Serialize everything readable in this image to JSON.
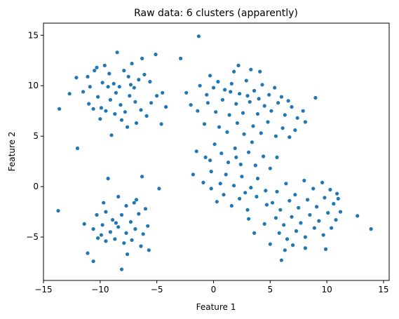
{
  "chart_data": {
    "type": "scatter",
    "title": "Raw data: 6 clusters (apparently)",
    "xlabel": "Feature 1",
    "ylabel": "Feature 2",
    "xlim": [
      -15,
      15.5
    ],
    "ylim": [
      -9.3,
      16.2
    ],
    "xticks": [
      -15,
      -10,
      -5,
      0,
      5,
      10,
      15
    ],
    "yticks": [
      -5,
      0,
      5,
      10,
      15
    ],
    "grid": false,
    "marker_color": "#1f77b4",
    "series": [
      {
        "values": [
          {
            "x": -10.3,
            "y": 11.8
          },
          {
            "x": -9.6,
            "y": 12.0
          },
          {
            "x": -8.5,
            "y": 13.3
          },
          {
            "x": -7.2,
            "y": 12.2
          },
          {
            "x": -6.3,
            "y": 12.7
          },
          {
            "x": -5.1,
            "y": 13.1
          },
          {
            "x": -12.1,
            "y": 10.8
          },
          {
            "x": -11.1,
            "y": 10.9
          },
          {
            "x": -10.5,
            "y": 11.5
          },
          {
            "x": -9.8,
            "y": 10.3
          },
          {
            "x": -9.2,
            "y": 11.2
          },
          {
            "x": -8.8,
            "y": 10.2
          },
          {
            "x": -8.3,
            "y": 9.9
          },
          {
            "x": -7.9,
            "y": 11.5
          },
          {
            "x": -7.5,
            "y": 10.9
          },
          {
            "x": -7.0,
            "y": 9.8
          },
          {
            "x": -6.6,
            "y": 10.6
          },
          {
            "x": -6.1,
            "y": 11.1
          },
          {
            "x": -5.6,
            "y": 10.4
          },
          {
            "x": -5.0,
            "y": 9.0
          },
          {
            "x": -4.5,
            "y": 9.3
          },
          {
            "x": -4.2,
            "y": 7.9
          },
          {
            "x": -12.7,
            "y": 9.2
          },
          {
            "x": -11.5,
            "y": 9.4
          },
          {
            "x": -11.0,
            "y": 8.2
          },
          {
            "x": -10.6,
            "y": 7.7
          },
          {
            "x": -10.2,
            "y": 8.9
          },
          {
            "x": -9.9,
            "y": 7.8
          },
          {
            "x": -9.5,
            "y": 7.5
          },
          {
            "x": -9.1,
            "y": 8.6
          },
          {
            "x": -8.7,
            "y": 7.2
          },
          {
            "x": -8.2,
            "y": 8.1
          },
          {
            "x": -7.8,
            "y": 7.4
          },
          {
            "x": -7.4,
            "y": 9.0
          },
          {
            "x": -6.9,
            "y": 8.4
          },
          {
            "x": -6.4,
            "y": 7.6
          },
          {
            "x": -5.9,
            "y": 7.0
          },
          {
            "x": -5.5,
            "y": 8.3
          },
          {
            "x": -4.6,
            "y": 6.2
          },
          {
            "x": -13.6,
            "y": 7.7
          },
          {
            "x": -10.0,
            "y": 6.7
          },
          {
            "x": -9.0,
            "y": 5.1
          },
          {
            "x": -8.1,
            "y": 6.6
          },
          {
            "x": -7.6,
            "y": 5.9
          },
          {
            "x": -6.8,
            "y": 6.3
          },
          {
            "x": -12.0,
            "y": 3.8
          },
          {
            "x": -9.3,
            "y": 9.9
          },
          {
            "x": -8.6,
            "y": 9.3
          },
          {
            "x": -10.9,
            "y": 9.9
          },
          {
            "x": -7.3,
            "y": 10.1
          },
          {
            "x": -2.9,
            "y": 12.7
          },
          {
            "x": -1.3,
            "y": 14.9
          },
          {
            "x": -0.3,
            "y": 11.0
          },
          {
            "x": 1.8,
            "y": 11.4
          },
          {
            "x": 2.2,
            "y": 12.0
          },
          {
            "x": 3.3,
            "y": 11.6
          },
          {
            "x": 4.1,
            "y": 11.4
          },
          {
            "x": -2.4,
            "y": 9.3
          },
          {
            "x": -1.2,
            "y": 10.0
          },
          {
            "x": -0.6,
            "y": 9.1
          },
          {
            "x": 0.4,
            "y": 10.4
          },
          {
            "x": 1.0,
            "y": 9.6
          },
          {
            "x": 1.6,
            "y": 10.2
          },
          {
            "x": 2.3,
            "y": 9.2
          },
          {
            "x": 2.9,
            "y": 10.5
          },
          {
            "x": 3.6,
            "y": 9.5
          },
          {
            "x": 4.3,
            "y": 10.1
          },
          {
            "x": 4.9,
            "y": 9.1
          },
          {
            "x": 5.4,
            "y": 9.8
          },
          {
            "x": 6.0,
            "y": 8.9
          },
          {
            "x": 6.6,
            "y": 8.5
          },
          {
            "x": -2.0,
            "y": 8.1
          },
          {
            "x": -1.4,
            "y": 7.5
          },
          {
            "x": -0.5,
            "y": 8.3
          },
          {
            "x": 0.2,
            "y": 7.4
          },
          {
            "x": 0.8,
            "y": 8.6
          },
          {
            "x": 1.4,
            "y": 7.1
          },
          {
            "x": 2.0,
            "y": 8.2
          },
          {
            "x": 2.6,
            "y": 7.3
          },
          {
            "x": 3.2,
            "y": 8.4
          },
          {
            "x": 3.9,
            "y": 7.2
          },
          {
            "x": 4.5,
            "y": 8.0
          },
          {
            "x": 5.1,
            "y": 7.5
          },
          {
            "x": 5.7,
            "y": 8.3
          },
          {
            "x": 6.3,
            "y": 7.1
          },
          {
            "x": 6.9,
            "y": 7.9
          },
          {
            "x": 7.4,
            "y": 6.8
          },
          {
            "x": 7.9,
            "y": 7.5
          },
          {
            "x": 8.1,
            "y": 6.4
          },
          {
            "x": 9.0,
            "y": 8.8
          },
          {
            "x": -0.8,
            "y": 6.2
          },
          {
            "x": 0.5,
            "y": 5.9
          },
          {
            "x": 1.2,
            "y": 5.4
          },
          {
            "x": 2.1,
            "y": 6.3
          },
          {
            "x": 2.7,
            "y": 5.2
          },
          {
            "x": 3.5,
            "y": 6.0
          },
          {
            "x": 4.2,
            "y": 5.3
          },
          {
            "x": 4.8,
            "y": 6.4
          },
          {
            "x": 5.5,
            "y": 5.0
          },
          {
            "x": 6.1,
            "y": 5.8
          },
          {
            "x": 6.7,
            "y": 4.9
          },
          {
            "x": 7.2,
            "y": 5.6
          },
          {
            "x": 1.5,
            "y": 9.4
          },
          {
            "x": 3.0,
            "y": 9.0
          },
          {
            "x": 4.0,
            "y": 8.7
          },
          {
            "x": 0.0,
            "y": 9.8
          },
          {
            "x": -1.5,
            "y": 3.5
          },
          {
            "x": -0.7,
            "y": 2.9
          },
          {
            "x": 0.1,
            "y": 4.2
          },
          {
            "x": 0.7,
            "y": 3.3
          },
          {
            "x": 1.3,
            "y": 2.4
          },
          {
            "x": 1.9,
            "y": 3.8
          },
          {
            "x": 2.4,
            "y": 2.2
          },
          {
            "x": 3.1,
            "y": 3.4
          },
          {
            "x": 3.7,
            "y": 2.1
          },
          {
            "x": 4.4,
            "y": 3.0
          },
          {
            "x": 5.0,
            "y": 1.8
          },
          {
            "x": 5.6,
            "y": 2.9
          },
          {
            "x": -1.8,
            "y": 1.2
          },
          {
            "x": -0.9,
            "y": 0.4
          },
          {
            "x": -0.2,
            "y": 1.5
          },
          {
            "x": 0.6,
            "y": 0.3
          },
          {
            "x": 1.1,
            "y": 1.2
          },
          {
            "x": 1.8,
            "y": 0.1
          },
          {
            "x": 2.5,
            "y": 1.0
          },
          {
            "x": 3.3,
            "y": -0.1
          },
          {
            "x": 3.9,
            "y": 0.8
          },
          {
            "x": 4.6,
            "y": -0.4
          },
          {
            "x": 0.9,
            "y": -0.8
          },
          {
            "x": 1.6,
            "y": -1.9
          },
          {
            "x": 2.3,
            "y": -1.2
          },
          {
            "x": 3.0,
            "y": -2.3
          },
          {
            "x": 3.8,
            "y": -1.0
          },
          {
            "x": 4.7,
            "y": -1.8
          },
          {
            "x": -0.2,
            "y": -0.2
          },
          {
            "x": 0.3,
            "y": -1.5
          },
          {
            "x": 2.8,
            "y": -0.6
          },
          {
            "x": 2.0,
            "y": 2.9
          },
          {
            "x": -0.3,
            "y": 2.6
          },
          {
            "x": 3.4,
            "y": 4.4
          },
          {
            "x": 5.6,
            "y": -0.5
          },
          {
            "x": 6.4,
            "y": 0.3
          },
          {
            "x": 7.2,
            "y": -0.8
          },
          {
            "x": 8.0,
            "y": 0.6
          },
          {
            "x": 8.8,
            "y": -0.2
          },
          {
            "x": 9.6,
            "y": 0.4
          },
          {
            "x": 10.3,
            "y": -0.3
          },
          {
            "x": 10.9,
            "y": -0.7
          },
          {
            "x": 5.2,
            "y": -1.6
          },
          {
            "x": 5.9,
            "y": -2.3
          },
          {
            "x": 6.7,
            "y": -1.4
          },
          {
            "x": 7.5,
            "y": -2.1
          },
          {
            "x": 8.3,
            "y": -1.3
          },
          {
            "x": 9.1,
            "y": -2.0
          },
          {
            "x": 9.8,
            "y": -1.1
          },
          {
            "x": 10.6,
            "y": -1.7
          },
          {
            "x": 11.2,
            "y": -2.5
          },
          {
            "x": 12.7,
            "y": -2.9
          },
          {
            "x": 13.9,
            "y": -4.2
          },
          {
            "x": 5.5,
            "y": -3.1
          },
          {
            "x": 6.2,
            "y": -3.8
          },
          {
            "x": 6.9,
            "y": -3.0
          },
          {
            "x": 7.7,
            "y": -3.6
          },
          {
            "x": 8.5,
            "y": -2.8
          },
          {
            "x": 9.3,
            "y": -3.4
          },
          {
            "x": 10.1,
            "y": -2.6
          },
          {
            "x": 10.8,
            "y": -3.3
          },
          {
            "x": 4.5,
            "y": -3.7
          },
          {
            "x": 5.8,
            "y": -4.6
          },
          {
            "x": 6.5,
            "y": -5.2
          },
          {
            "x": 7.3,
            "y": -4.4
          },
          {
            "x": 8.1,
            "y": -5.0
          },
          {
            "x": 8.9,
            "y": -4.1
          },
          {
            "x": 9.7,
            "y": -4.8
          },
          {
            "x": 3.6,
            "y": -4.6
          },
          {
            "x": 3.1,
            "y": -3.2
          },
          {
            "x": 5.0,
            "y": -5.7
          },
          {
            "x": 6.3,
            "y": -6.3
          },
          {
            "x": 6.0,
            "y": -7.3
          },
          {
            "x": 8.1,
            "y": -6.1
          },
          {
            "x": 9.9,
            "y": -6.2
          },
          {
            "x": 7.0,
            "y": -5.8
          },
          {
            "x": 11.0,
            "y": -1.2
          },
          {
            "x": 10.4,
            "y": -4.1
          },
          {
            "x": -9.3,
            "y": 0.8
          },
          {
            "x": -6.3,
            "y": 1.0
          },
          {
            "x": -4.8,
            "y": -0.2
          },
          {
            "x": -9.7,
            "y": -1.6
          },
          {
            "x": -8.4,
            "y": -1.0
          },
          {
            "x": -7.7,
            "y": -1.9
          },
          {
            "x": -6.8,
            "y": -1.3
          },
          {
            "x": -6.0,
            "y": -2.2
          },
          {
            "x": -10.3,
            "y": -2.8
          },
          {
            "x": -9.5,
            "y": -2.5
          },
          {
            "x": -8.9,
            "y": -3.3
          },
          {
            "x": -8.1,
            "y": -2.8
          },
          {
            "x": -7.3,
            "y": -3.5
          },
          {
            "x": -6.6,
            "y": -2.7
          },
          {
            "x": -5.8,
            "y": -3.9
          },
          {
            "x": -11.4,
            "y": -3.7
          },
          {
            "x": -10.6,
            "y": -4.2
          },
          {
            "x": -9.8,
            "y": -3.8
          },
          {
            "x": -9.1,
            "y": -4.5
          },
          {
            "x": -8.4,
            "y": -4.0
          },
          {
            "x": -7.7,
            "y": -4.6
          },
          {
            "x": -6.9,
            "y": -4.2
          },
          {
            "x": -6.2,
            "y": -4.7
          },
          {
            "x": -10.2,
            "y": -5.1
          },
          {
            "x": -9.5,
            "y": -5.4
          },
          {
            "x": -8.7,
            "y": -5.2
          },
          {
            "x": -7.9,
            "y": -5.6
          },
          {
            "x": -7.2,
            "y": -5.3
          },
          {
            "x": -6.4,
            "y": -5.9
          },
          {
            "x": -5.7,
            "y": -6.3
          },
          {
            "x": -11.1,
            "y": -6.6
          },
          {
            "x": -10.6,
            "y": -7.4
          },
          {
            "x": -8.1,
            "y": -8.2
          },
          {
            "x": -7.6,
            "y": -6.7
          },
          {
            "x": -13.7,
            "y": -2.4
          },
          {
            "x": -7.0,
            "y": -1.6
          },
          {
            "x": -8.6,
            "y": -3.6
          },
          {
            "x": -9.9,
            "y": -4.8
          }
        ]
      }
    ]
  }
}
